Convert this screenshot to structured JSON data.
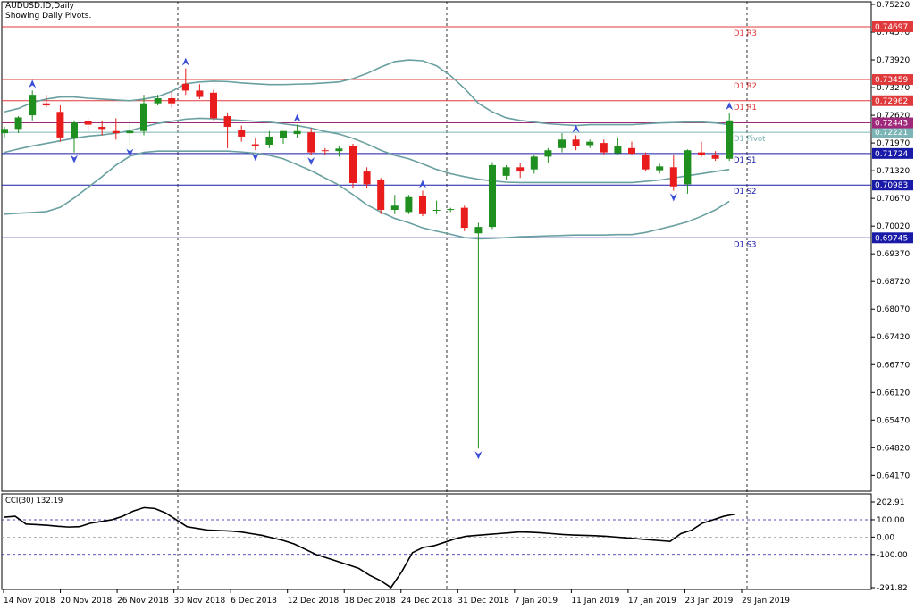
{
  "header": {
    "symbol": "AUDUSD.ID,Daily",
    "subtitle": "Showing Daily Pivots."
  },
  "indicator": {
    "label": "CCI(30) 132.19",
    "levels": [
      202.91,
      100.0,
      0.0,
      -100.0,
      -291.82
    ]
  },
  "colors": {
    "bull": "#1f8f1f",
    "bear": "#e81c1c",
    "band": "#6aa0a0",
    "resistance": "#e0393b",
    "support": "#1a1aa8",
    "pivot": "#a0287a",
    "pivot_tag": "#7bb5b5",
    "grid": "#b0b0b0"
  },
  "chart_data": [
    {
      "type": "candlestick",
      "title": "AUDUSD.ID,Daily",
      "y_ticks": [
        0.7522,
        0.7457,
        0.7392,
        0.7327,
        0.7262,
        0.7197,
        0.7132,
        0.7067,
        0.7002,
        0.6937,
        0.6872,
        0.6807,
        0.6742,
        0.6677,
        0.6612,
        0.6547,
        0.6482,
        0.6417
      ],
      "ylim": [
        0.638,
        0.7522
      ],
      "x_labels": [
        "14 Nov 2018",
        "20 Nov 2018",
        "26 Nov 2018",
        "30 Nov 2018",
        "6 Dec 2018",
        "12 Dec 2018",
        "18 Dec 2018",
        "24 Dec 2018",
        "31 Dec 2018",
        "7 Jan 2019",
        "11 Jan 2019",
        "17 Jan 2019",
        "23 Jan 2019",
        "29 Jan 2019"
      ],
      "pivots": [
        {
          "name": "D1 R3",
          "value": 0.74697,
          "kind": "resistance"
        },
        {
          "name": "D1 R2",
          "value": 0.73459,
          "kind": "resistance"
        },
        {
          "name": "D1 R1",
          "value": 0.72962,
          "kind": "resistance"
        },
        {
          "name": "D1 Pivot",
          "value": 0.72221,
          "kind": "pivot"
        },
        {
          "name": "D1 S1",
          "value": 0.71724,
          "kind": "support"
        },
        {
          "name": "D1 S2",
          "value": 0.70983,
          "kind": "support"
        },
        {
          "name": "D1 S3",
          "value": 0.69745,
          "kind": "support"
        }
      ],
      "current_price": 0.72443,
      "candles": [
        {
          "o": 0.722,
          "h": 0.7235,
          "l": 0.721,
          "c": 0.723
        },
        {
          "o": 0.723,
          "h": 0.726,
          "l": 0.722,
          "c": 0.7257
        },
        {
          "o": 0.7262,
          "h": 0.732,
          "l": 0.725,
          "c": 0.731
        },
        {
          "o": 0.729,
          "h": 0.731,
          "l": 0.728,
          "c": 0.7285
        },
        {
          "o": 0.727,
          "h": 0.7285,
          "l": 0.72,
          "c": 0.721
        },
        {
          "o": 0.7208,
          "h": 0.725,
          "l": 0.7175,
          "c": 0.7245
        },
        {
          "o": 0.7248,
          "h": 0.7255,
          "l": 0.7225,
          "c": 0.724
        },
        {
          "o": 0.7235,
          "h": 0.725,
          "l": 0.7215,
          "c": 0.723
        },
        {
          "o": 0.7225,
          "h": 0.7255,
          "l": 0.7205,
          "c": 0.722
        },
        {
          "o": 0.722,
          "h": 0.725,
          "l": 0.719,
          "c": 0.7225
        },
        {
          "o": 0.7225,
          "h": 0.731,
          "l": 0.7215,
          "c": 0.729
        },
        {
          "o": 0.729,
          "h": 0.731,
          "l": 0.7285,
          "c": 0.7302
        },
        {
          "o": 0.7302,
          "h": 0.7318,
          "l": 0.728,
          "c": 0.729
        },
        {
          "o": 0.7336,
          "h": 0.7372,
          "l": 0.731,
          "c": 0.732
        },
        {
          "o": 0.732,
          "h": 0.7335,
          "l": 0.73,
          "c": 0.7305
        },
        {
          "o": 0.7315,
          "h": 0.7322,
          "l": 0.725,
          "c": 0.7255
        },
        {
          "o": 0.726,
          "h": 0.7268,
          "l": 0.7185,
          "c": 0.7235
        },
        {
          "o": 0.7228,
          "h": 0.7238,
          "l": 0.72,
          "c": 0.7212
        },
        {
          "o": 0.7194,
          "h": 0.721,
          "l": 0.718,
          "c": 0.719
        },
        {
          "o": 0.7193,
          "h": 0.7225,
          "l": 0.7185,
          "c": 0.7212
        },
        {
          "o": 0.7208,
          "h": 0.7225,
          "l": 0.7195,
          "c": 0.7225
        },
        {
          "o": 0.7218,
          "h": 0.724,
          "l": 0.7208,
          "c": 0.7225
        },
        {
          "o": 0.7222,
          "h": 0.7232,
          "l": 0.717,
          "c": 0.7175
        },
        {
          "o": 0.718,
          "h": 0.7185,
          "l": 0.7168,
          "c": 0.7178
        },
        {
          "o": 0.7178,
          "h": 0.719,
          "l": 0.7165,
          "c": 0.7184
        },
        {
          "o": 0.719,
          "h": 0.7195,
          "l": 0.709,
          "c": 0.7103
        },
        {
          "o": 0.713,
          "h": 0.714,
          "l": 0.709,
          "c": 0.71
        },
        {
          "o": 0.711,
          "h": 0.7115,
          "l": 0.703,
          "c": 0.704
        },
        {
          "o": 0.704,
          "h": 0.7075,
          "l": 0.703,
          "c": 0.705
        },
        {
          "o": 0.7035,
          "h": 0.7075,
          "l": 0.703,
          "c": 0.707
        },
        {
          "o": 0.7072,
          "h": 0.7085,
          "l": 0.7025,
          "c": 0.703
        },
        {
          "o": 0.704,
          "h": 0.7062,
          "l": 0.703,
          "c": 0.704
        },
        {
          "o": 0.704,
          "h": 0.7045,
          "l": 0.7035,
          "c": 0.7042
        },
        {
          "o": 0.7045,
          "h": 0.705,
          "l": 0.699,
          "c": 0.6998
        },
        {
          "o": 0.6985,
          "h": 0.701,
          "l": 0.648,
          "c": 0.7
        },
        {
          "o": 0.7,
          "h": 0.7152,
          "l": 0.6995,
          "c": 0.7145
        },
        {
          "o": 0.712,
          "h": 0.7145,
          "l": 0.711,
          "c": 0.714
        },
        {
          "o": 0.714,
          "h": 0.715,
          "l": 0.7115,
          "c": 0.713
        },
        {
          "o": 0.7135,
          "h": 0.717,
          "l": 0.7125,
          "c": 0.7165
        },
        {
          "o": 0.7165,
          "h": 0.7185,
          "l": 0.715,
          "c": 0.718
        },
        {
          "o": 0.7185,
          "h": 0.722,
          "l": 0.7175,
          "c": 0.7205
        },
        {
          "o": 0.7205,
          "h": 0.7215,
          "l": 0.718,
          "c": 0.719
        },
        {
          "o": 0.7192,
          "h": 0.7205,
          "l": 0.7185,
          "c": 0.72
        },
        {
          "o": 0.7197,
          "h": 0.7205,
          "l": 0.717,
          "c": 0.7175
        },
        {
          "o": 0.7173,
          "h": 0.721,
          "l": 0.717,
          "c": 0.719
        },
        {
          "o": 0.7185,
          "h": 0.72,
          "l": 0.7168,
          "c": 0.7172
        },
        {
          "o": 0.7168,
          "h": 0.7175,
          "l": 0.713,
          "c": 0.7135
        },
        {
          "o": 0.7133,
          "h": 0.7148,
          "l": 0.7125,
          "c": 0.7142
        },
        {
          "o": 0.714,
          "h": 0.717,
          "l": 0.7085,
          "c": 0.7095
        },
        {
          "o": 0.71,
          "h": 0.7182,
          "l": 0.7078,
          "c": 0.718
        },
        {
          "o": 0.7175,
          "h": 0.72,
          "l": 0.7165,
          "c": 0.7168
        },
        {
          "o": 0.717,
          "h": 0.7178,
          "l": 0.7155,
          "c": 0.716
        },
        {
          "o": 0.716,
          "h": 0.7268,
          "l": 0.7155,
          "c": 0.725
        }
      ],
      "bands": {
        "upper": [
          0.727,
          0.7278,
          0.7292,
          0.73,
          0.7305,
          0.7305,
          0.7302,
          0.73,
          0.7298,
          0.7296,
          0.73,
          0.7306,
          0.7318,
          0.7336,
          0.734,
          0.7342,
          0.7341,
          0.7338,
          0.7336,
          0.7334,
          0.7334,
          0.7335,
          0.7336,
          0.7338,
          0.734,
          0.7348,
          0.736,
          0.7375,
          0.7388,
          0.7392,
          0.739,
          0.7378,
          0.7355,
          0.7325,
          0.729,
          0.727,
          0.7256,
          0.725,
          0.7246,
          0.7242,
          0.724,
          0.7238,
          0.724,
          0.724,
          0.724,
          0.724,
          0.7242,
          0.7244,
          0.7245,
          0.7246,
          0.7246,
          0.7244,
          0.724
        ],
        "middle": [
          0.7175,
          0.7183,
          0.719,
          0.7196,
          0.7202,
          0.7208,
          0.7213,
          0.7216,
          0.722,
          0.7226,
          0.7235,
          0.7243,
          0.7248,
          0.7253,
          0.7255,
          0.7254,
          0.7252,
          0.725,
          0.7248,
          0.7246,
          0.7242,
          0.7238,
          0.7232,
          0.7224,
          0.7218,
          0.7208,
          0.7195,
          0.718,
          0.7168,
          0.716,
          0.7148,
          0.7135,
          0.7125,
          0.7118,
          0.7112,
          0.7108,
          0.7105,
          0.7104,
          0.7104,
          0.7104,
          0.7104,
          0.7104,
          0.7104,
          0.7104,
          0.7104,
          0.7104,
          0.7107,
          0.711,
          0.7115,
          0.712,
          0.7125,
          0.713,
          0.7135
        ],
        "lower": [
          0.703,
          0.7032,
          0.7034,
          0.7036,
          0.7046,
          0.7068,
          0.7093,
          0.7118,
          0.7145,
          0.7166,
          0.7175,
          0.7178,
          0.7178,
          0.7178,
          0.7178,
          0.7178,
          0.7178,
          0.7176,
          0.7173,
          0.7168,
          0.716,
          0.7146,
          0.7132,
          0.7115,
          0.7098,
          0.7076,
          0.7052,
          0.7035,
          0.702,
          0.701,
          0.6998,
          0.699,
          0.6983,
          0.6975,
          0.6972,
          0.6973,
          0.6975,
          0.6977,
          0.6978,
          0.6979,
          0.698,
          0.6981,
          0.6981,
          0.6981,
          0.6982,
          0.6982,
          0.6987,
          0.6995,
          0.7003,
          0.7012,
          0.7025,
          0.704,
          0.706
        ]
      },
      "fractals_up": [
        2,
        13,
        21,
        30,
        41,
        52
      ],
      "fractals_down": [
        5,
        9,
        18,
        22,
        34,
        48
      ]
    },
    {
      "type": "line",
      "title": "CCI(30) 132.19",
      "ylim": [
        -291.82,
        202.91
      ],
      "y_ticks": [
        202.91,
        100.0,
        0.0,
        -100.0,
        -291.82
      ],
      "values": [
        115,
        120,
        75,
        72,
        68,
        62,
        58,
        60,
        80,
        90,
        100,
        120,
        150,
        170,
        165,
        140,
        100,
        60,
        50,
        40,
        38,
        35,
        30,
        20,
        10,
        -5,
        -20,
        -40,
        -70,
        -100,
        -120,
        -140,
        -160,
        -180,
        -220,
        -250,
        -291,
        -200,
        -90,
        -60,
        -50,
        -30,
        -10,
        5,
        10,
        15,
        20,
        25,
        30,
        28,
        25,
        20,
        15,
        12,
        10,
        8,
        5,
        0,
        -5,
        -10,
        -15,
        -20,
        -25,
        20,
        40,
        80,
        100,
        120,
        132
      ],
      "source_series_values_note": ""
    }
  ]
}
